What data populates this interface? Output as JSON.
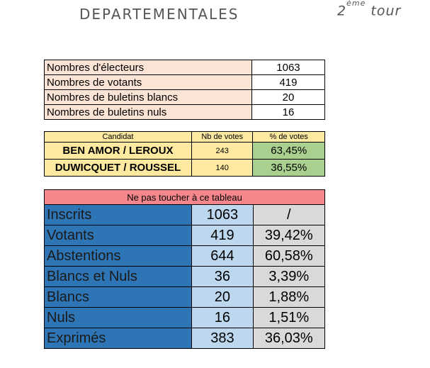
{
  "header": {
    "title": "DEPARTEMENTALES",
    "tour_number": "2",
    "tour_sup": "ème",
    "tour_word": "tour"
  },
  "electeurs": [
    {
      "label": "Nombres d'électeurs",
      "value": "1063"
    },
    {
      "label": "Nombres de votants",
      "value": "419"
    },
    {
      "label": "Nombres de buletins blancs",
      "value": "20"
    },
    {
      "label": "Nombres de buletins nuls",
      "value": "16"
    }
  ],
  "candidats": {
    "headers": [
      "Candidat",
      "Nb de votes",
      "% de votes"
    ],
    "rows": [
      {
        "candidat": "BEN AMOR / LEROUX",
        "votes": "243",
        "pct": "63,45%"
      },
      {
        "candidat": "DUWICQUET / ROUSSEL",
        "votes": "140",
        "pct": "36,55%"
      }
    ]
  },
  "resultats": {
    "header": "Ne pas toucher à ce tableau",
    "rows": [
      {
        "label": "Inscrits",
        "value": "1063",
        "pct": "/"
      },
      {
        "label": "Votants",
        "value": "419",
        "pct": "39,42%"
      },
      {
        "label": "Abstentions",
        "value": "644",
        "pct": "60,58%"
      },
      {
        "label": "Blancs et Nuls",
        "value": "36",
        "pct": "3,39%"
      },
      {
        "label": "Blancs",
        "value": "20",
        "pct": "1,88%"
      },
      {
        "label": "Nuls",
        "value": "16",
        "pct": "1,51%"
      },
      {
        "label": "Exprimés",
        "value": "383",
        "pct": "36,03%"
      }
    ]
  },
  "colors": {
    "peach": "#fbe4d5",
    "yellow": "#fde9a0",
    "green": "#a9d08e",
    "red_header": "#f4868c",
    "blue": "#2e75b6",
    "light_blue": "#bdd7ee",
    "grey": "#d9d9d9"
  }
}
